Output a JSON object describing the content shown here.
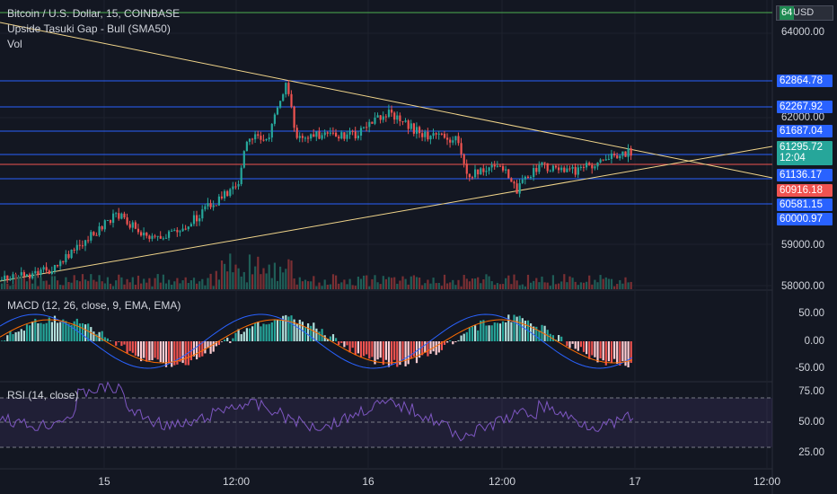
{
  "legend": {
    "symbol": "Bitcoin / U.S. Dollar, 15, COINBASE",
    "study": "Upside Tasuki Gap - Bull (SMA50)",
    "volume": "Vol"
  },
  "currency_tag": {
    "prefix": "64",
    "label": "USD"
  },
  "indicators": {
    "macd_label": "MACD (12, 26, close, 9, EMA, EMA)",
    "rsi_label": "RSI (14, close)"
  },
  "price_axis": [
    "64000.00",
    "62000.00",
    "59000.00",
    "58000.00"
  ],
  "price_levels": [
    {
      "label": "62864.78",
      "color": "#2962ff"
    },
    {
      "label": "62267.92",
      "color": "#2962ff"
    },
    {
      "label": "61687.04",
      "color": "#2962ff"
    },
    {
      "label": "61295.72",
      "sub": "12:04",
      "color": "#26a69a"
    },
    {
      "label": "61136.17",
      "color": "#2962ff"
    },
    {
      "label": "60916.18",
      "color": "#ef5350"
    },
    {
      "label": "60581.15",
      "color": "#2962ff"
    },
    {
      "label": "60000.97",
      "color": "#2962ff"
    }
  ],
  "macd_axis": [
    "50.00",
    "0.00",
    "-50.00"
  ],
  "rsi_axis": [
    "75.00",
    "50.00",
    "25.00"
  ],
  "time_axis": [
    "15",
    "12:00",
    "16",
    "12:00",
    "17",
    "12:00"
  ],
  "colors": {
    "background": "#131722",
    "up": "#26a69a",
    "down": "#ef5350",
    "level_line": "#2962ff",
    "trendline": "#f0d48a",
    "green_line": "#4caf50",
    "rsi_band": "#7e57c2"
  }
}
